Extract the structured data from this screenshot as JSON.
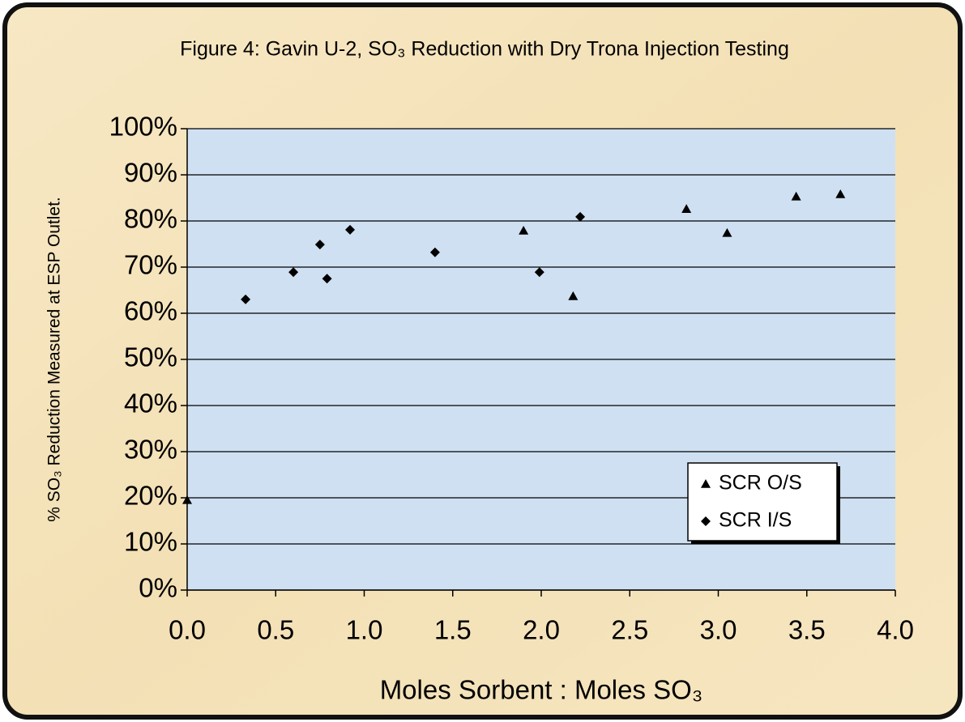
{
  "chart_data": {
    "type": "scatter",
    "title": "Figure 4: Gavin U-2, SO₃ Reduction with Dry Trona Injection Testing",
    "x_label": "Moles Sorbent : Moles SO₃",
    "y_label": "% SO₃ Reduction Measured at ESP Outlet.",
    "xlim": [
      0,
      4
    ],
    "ylim": [
      0,
      100
    ],
    "xticks": [
      {
        "value": 0,
        "label": "0.0"
      },
      {
        "value": 0.5,
        "label": "0.5"
      },
      {
        "value": 1,
        "label": "1.0"
      },
      {
        "value": 1.5,
        "label": "1.5"
      },
      {
        "value": 2,
        "label": "2.0"
      },
      {
        "value": 2.5,
        "label": "2.5"
      },
      {
        "value": 3,
        "label": "3.0"
      },
      {
        "value": 3.5,
        "label": "3.5"
      },
      {
        "value": 4,
        "label": "4.0"
      }
    ],
    "yticks": [
      {
        "value": 0,
        "label": "0%"
      },
      {
        "value": 10,
        "label": "10%"
      },
      {
        "value": 20,
        "label": "20%"
      },
      {
        "value": 30,
        "label": "30%"
      },
      {
        "value": 40,
        "label": "40%"
      },
      {
        "value": 50,
        "label": "50%"
      },
      {
        "value": 60,
        "label": "60%"
      },
      {
        "value": 70,
        "label": "70%"
      },
      {
        "value": 80,
        "label": "80%"
      },
      {
        "value": 90,
        "label": "90%"
      },
      {
        "value": 100,
        "label": "100%"
      }
    ],
    "grid": true,
    "legend": "lower right",
    "series": [
      {
        "name": "SCR O/S",
        "color": "#000000",
        "marker": "triangle",
        "x": [
          0,
          1.9,
          2.18,
          2.82,
          3.05,
          3.44,
          3.69
        ],
        "values": [
          19.5,
          77.9,
          63.7,
          82.6,
          77.4,
          85.3,
          85.8
        ]
      },
      {
        "name": "SCR I/S",
        "color": "#000000",
        "marker": "diamond",
        "x": [
          0.33,
          0.6,
          0.75,
          0.79,
          0.92,
          1.4,
          1.99,
          2.22
        ],
        "values": [
          63.0,
          68.9,
          74.9,
          67.5,
          78.1,
          73.2,
          68.9,
          80.9
        ]
      }
    ]
  }
}
